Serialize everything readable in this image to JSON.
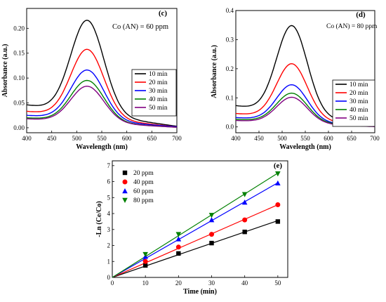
{
  "chart_data": [
    {
      "panel": "c",
      "type": "line",
      "annotation": "Co (AN) = 60 ppm",
      "xlabel": "Wavelength (nm)",
      "ylabel": "Absorbance (a.u.)",
      "xlim": [
        400,
        700
      ],
      "ylim": [
        -0.01,
        0.24
      ],
      "xticks": [
        400,
        450,
        500,
        550,
        600,
        650,
        700
      ],
      "yticks": [
        0.0,
        0.05,
        0.1,
        0.15,
        0.2
      ],
      "ytick_labels": [
        "0.00",
        "0.05",
        "0.10",
        "0.15",
        "0.20"
      ],
      "legend_position": "right",
      "series": [
        {
          "name": "10 min",
          "color": "#000000",
          "peak": 0.225,
          "base_left": 0.046,
          "base_right": 0.003
        },
        {
          "name": "20 min",
          "color": "#ff0000",
          "peak": 0.164,
          "base_left": 0.033,
          "base_right": 0.002
        },
        {
          "name": "30 min",
          "color": "#0000ff",
          "peak": 0.121,
          "base_left": 0.025,
          "base_right": 0.002
        },
        {
          "name": "40 min",
          "color": "#008000",
          "peak": 0.099,
          "base_left": 0.02,
          "base_right": 0.001
        },
        {
          "name": "50 min",
          "color": "#800080",
          "peak": 0.087,
          "base_left": 0.018,
          "base_right": 0.001
        }
      ]
    },
    {
      "panel": "d",
      "type": "line",
      "annotation": "Co (AN) = 80 ppm",
      "xlabel": "Wavelength (nm)",
      "ylabel": "Absorbance (a.u.)",
      "xlim": [
        400,
        700
      ],
      "ylim": [
        -0.02,
        0.4
      ],
      "xticks": [
        400,
        450,
        500,
        550,
        600,
        650,
        700
      ],
      "yticks": [
        0.0,
        0.1,
        0.2,
        0.3,
        0.4
      ],
      "ytick_labels": [
        "0.0",
        "0.1",
        "0.2",
        "0.3",
        "0.4"
      ],
      "legend_position": "right",
      "series": [
        {
          "name": "10 min",
          "color": "#000000",
          "peak": 0.362,
          "base_left": 0.073,
          "base_right": 0.004
        },
        {
          "name": "20 min",
          "color": "#ff0000",
          "peak": 0.226,
          "base_left": 0.046,
          "base_right": 0.003
        },
        {
          "name": "30 min",
          "color": "#0000ff",
          "peak": 0.151,
          "base_left": 0.032,
          "base_right": 0.002
        },
        {
          "name": "40 min",
          "color": "#008000",
          "peak": 0.121,
          "base_left": 0.026,
          "base_right": 0.002
        },
        {
          "name": "50 min",
          "color": "#800080",
          "peak": 0.106,
          "base_left": 0.022,
          "base_right": 0.001
        }
      ]
    },
    {
      "panel": "e",
      "type": "scatter",
      "xlabel": "Time (min)",
      "ylabel": "-Ln (Ce/Co)",
      "xlim": [
        0,
        53
      ],
      "ylim": [
        0,
        7.3
      ],
      "xticks": [
        0,
        10,
        20,
        30,
        40,
        50
      ],
      "yticks": [
        0,
        1,
        2,
        3,
        4,
        5,
        6,
        7
      ],
      "legend_position": "top-left",
      "x": [
        0,
        10,
        20,
        30,
        40,
        50
      ],
      "series": [
        {
          "name": "20 ppm",
          "color": "#000000",
          "marker": "square",
          "values": [
            0,
            0.75,
            1.5,
            2.15,
            2.85,
            3.5
          ]
        },
        {
          "name": "40 ppm",
          "color": "#ff0000",
          "marker": "circle",
          "values": [
            0,
            1.0,
            1.9,
            2.7,
            3.6,
            4.55
          ]
        },
        {
          "name": "60 ppm",
          "color": "#0000ff",
          "marker": "triangle-up",
          "values": [
            0,
            1.3,
            2.4,
            3.6,
            4.7,
            5.9
          ]
        },
        {
          "name": "80 ppm",
          "color": "#008000",
          "marker": "triangle-down",
          "values": [
            0,
            1.45,
            2.7,
            3.9,
            5.2,
            6.5
          ]
        }
      ]
    }
  ]
}
